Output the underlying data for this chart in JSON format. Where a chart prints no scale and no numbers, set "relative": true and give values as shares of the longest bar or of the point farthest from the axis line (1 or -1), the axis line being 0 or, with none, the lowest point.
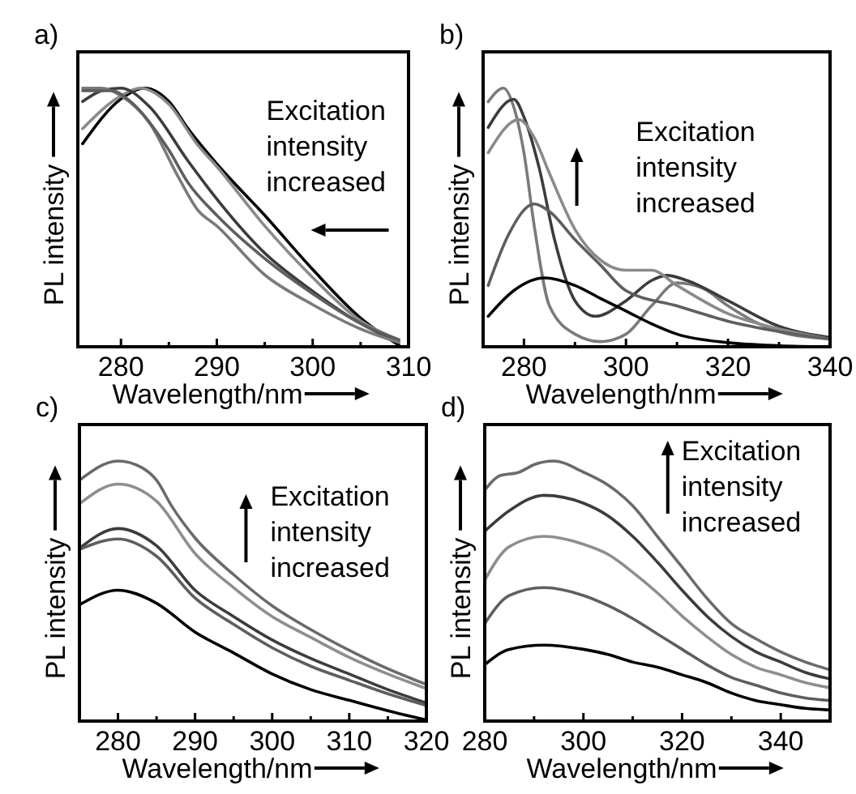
{
  "chart_data": [
    {
      "type": "line",
      "title": "a)",
      "xlabel": "Wavelength/nm",
      "ylabel": "PL intensity",
      "relative": true,
      "tick_labels": "x",
      "xlim": [
        275.5,
        310
      ],
      "xticks": [
        280,
        {
          "value": 285,
          "label": null
        },
        290,
        {
          "value": 295,
          "label": null
        },
        300,
        {
          "value": 305,
          "label": null
        },
        310
      ],
      "annotations": [
        "Excitation intensity increased"
      ],
      "series": [
        {
          "color": "#000000",
          "x": [
            276,
            280,
            282.5,
            285,
            287,
            290,
            295,
            300,
            305,
            309
          ],
          "values": [
            0.785,
            0.958,
            1,
            0.948,
            0.843,
            0.707,
            0.508,
            0.299,
            0.111,
            0.006
          ]
        },
        {
          "color": "#8a8a8a",
          "x": [
            276,
            280,
            282,
            285,
            288,
            290,
            295,
            300,
            305,
            309
          ],
          "values": [
            0.843,
            0.97,
            1,
            0.937,
            0.78,
            0.697,
            0.467,
            0.268,
            0.1,
            0.027
          ]
        },
        {
          "color": "#3c3c3c",
          "x": [
            276,
            278,
            280,
            283,
            287,
            290,
            295,
            300,
            305,
            309
          ],
          "values": [
            0.948,
            0.99,
            1,
            0.927,
            0.718,
            0.571,
            0.362,
            0.215,
            0.09,
            0.017
          ]
        },
        {
          "color": "#7a7a7a",
          "x": [
            276,
            278,
            280,
            283,
            286,
            288,
            290,
            295,
            300,
            305,
            309
          ],
          "values": [
            1,
            1,
            0.97,
            0.864,
            0.655,
            0.529,
            0.467,
            0.278,
            0.163,
            0.069,
            0.017
          ]
        },
        {
          "color": "#5e5e5e",
          "x": [
            276,
            279,
            281,
            285,
            287,
            290,
            295,
            300,
            305,
            309
          ],
          "values": [
            0.99,
            0.99,
            0.948,
            0.76,
            0.634,
            0.508,
            0.341,
            0.205,
            0.09,
            0.027
          ]
        }
      ]
    },
    {
      "type": "line",
      "title": "b)",
      "xlabel": "Wavelength/nm",
      "ylabel": "PL intensity",
      "relative": true,
      "tick_labels": "x",
      "xlim": [
        272,
        340
      ],
      "xticks": [
        280,
        {
          "value": 290,
          "label": null
        },
        300,
        {
          "value": 310,
          "label": null
        },
        320,
        {
          "value": 330,
          "label": null
        },
        340
      ],
      "annotations": [
        "Excitation intensity increased"
      ],
      "series": [
        {
          "color": "#7a7a7a",
          "x": [
            273,
            276,
            278,
            280,
            282,
            285,
            290,
            295,
            300,
            305,
            310,
            315,
            320,
            325,
            330,
            340
          ],
          "values": [
            0.947,
            1,
            0.927,
            0.75,
            0.47,
            0.158,
            0.049,
            0.02,
            0.049,
            0.158,
            0.247,
            0.227,
            0.158,
            0.099,
            0.059,
            0.03
          ]
        },
        {
          "color": "#3c3c3c",
          "x": [
            273,
            278,
            280,
            283,
            286,
            290,
            294,
            300,
            305,
            308,
            312,
            320,
            330,
            340
          ],
          "values": [
            0.848,
            0.957,
            0.888,
            0.69,
            0.414,
            0.178,
            0.118,
            0.178,
            0.256,
            0.276,
            0.256,
            0.178,
            0.079,
            0.036
          ]
        },
        {
          "color": "#8a8a8a",
          "x": [
            273,
            279,
            282,
            285,
            290,
            295,
            300,
            305,
            310,
            320,
            330,
            340
          ],
          "values": [
            0.75,
            0.878,
            0.809,
            0.67,
            0.454,
            0.335,
            0.296,
            0.296,
            0.237,
            0.128,
            0.069,
            0.03
          ]
        },
        {
          "color": "#5e5e5e",
          "x": [
            273,
            277,
            282,
            285,
            290,
            295,
            300,
            310,
            320,
            330,
            340
          ],
          "values": [
            0.237,
            0.434,
            0.552,
            0.523,
            0.414,
            0.316,
            0.217,
            0.158,
            0.099,
            0.059,
            0.03
          ]
        },
        {
          "color": "#000000",
          "x": [
            273,
            278,
            284,
            290,
            295,
            300,
            305,
            310,
            320,
            330,
            340
          ],
          "values": [
            0.118,
            0.217,
            0.266,
            0.237,
            0.187,
            0.138,
            0.089,
            0.049,
            0.016,
            0.004,
            0
          ]
        }
      ]
    },
    {
      "type": "line",
      "title": "c)",
      "xlabel": "Wavelength/nm",
      "ylabel": "PL intensity",
      "relative": true,
      "tick_labels": "x",
      "xlim": [
        275,
        320
      ],
      "xticks": [
        280,
        {
          "value": 285,
          "label": null
        },
        290,
        {
          "value": 295,
          "label": null
        },
        300,
        {
          "value": 305,
          "label": null
        },
        310,
        {
          "value": 315,
          "label": null
        },
        320
      ],
      "annotations": [
        "Excitation intensity increased"
      ],
      "series": [
        {
          "color": "#6a6a6a",
          "x": [
            275,
            280,
            283,
            285,
            287,
            290,
            295,
            300,
            305,
            310,
            315,
            320
          ],
          "values": [
            0.926,
            1,
            0.976,
            0.926,
            0.825,
            0.704,
            0.563,
            0.443,
            0.352,
            0.272,
            0.201,
            0.141
          ]
        },
        {
          "color": "#8e8e8e",
          "x": [
            275,
            280,
            285,
            290,
            295,
            300,
            305,
            310,
            315,
            320
          ],
          "values": [
            0.835,
            0.911,
            0.845,
            0.644,
            0.513,
            0.402,
            0.322,
            0.245,
            0.181,
            0.125
          ]
        },
        {
          "color": "#3c3c3c",
          "x": [
            275,
            280,
            285,
            290,
            295,
            300,
            305,
            310,
            315,
            320
          ],
          "values": [
            0.664,
            0.74,
            0.674,
            0.503,
            0.402,
            0.312,
            0.241,
            0.181,
            0.121,
            0.07
          ]
        },
        {
          "color": "#5e5e5e",
          "x": [
            275,
            280,
            285,
            290,
            295,
            300,
            305,
            310,
            315,
            320
          ],
          "values": [
            0.66,
            0.7,
            0.634,
            0.473,
            0.372,
            0.282,
            0.211,
            0.157,
            0.105,
            0.06
          ]
        },
        {
          "color": "#000000",
          "x": [
            275,
            280,
            285,
            290,
            295,
            300,
            305,
            310,
            315,
            320
          ],
          "values": [
            0.447,
            0.503,
            0.453,
            0.342,
            0.262,
            0.181,
            0.121,
            0.08,
            0.04,
            0.004
          ]
        }
      ]
    },
    {
      "type": "line",
      "title": "d)",
      "xlabel": "Wavelength/nm",
      "ylabel": "PL intensity",
      "relative": true,
      "tick_labels": "x",
      "xlim": [
        280,
        350
      ],
      "xticks": [
        280,
        {
          "value": 290,
          "label": null
        },
        300,
        {
          "value": 310,
          "label": null
        },
        320,
        {
          "value": 330,
          "label": null
        },
        340
      ],
      "annotations": [
        "Excitation intensity increased"
      ],
      "series": [
        {
          "color": "#6a6a6a",
          "x": [
            280,
            283,
            287,
            290,
            294,
            300,
            305,
            310,
            315,
            320,
            325,
            330,
            335,
            340,
            345,
            350
          ],
          "values": [
            0.888,
            0.943,
            0.957,
            0.986,
            1,
            0.957,
            0.907,
            0.828,
            0.71,
            0.592,
            0.473,
            0.375,
            0.316,
            0.266,
            0.227,
            0.197
          ]
        },
        {
          "color": "#3c3c3c",
          "x": [
            280,
            285,
            292,
            300,
            305,
            310,
            315,
            320,
            325,
            330,
            335,
            340,
            345,
            350
          ],
          "values": [
            0.73,
            0.809,
            0.868,
            0.838,
            0.789,
            0.71,
            0.611,
            0.503,
            0.404,
            0.325,
            0.266,
            0.227,
            0.187,
            0.162
          ]
        },
        {
          "color": "#8e8e8e",
          "x": [
            280,
            285,
            292,
            300,
            305,
            310,
            315,
            320,
            325,
            330,
            335,
            340,
            345,
            350
          ],
          "values": [
            0.542,
            0.671,
            0.71,
            0.68,
            0.641,
            0.572,
            0.493,
            0.404,
            0.325,
            0.256,
            0.207,
            0.178,
            0.148,
            0.128
          ]
        },
        {
          "color": "#5e5e5e",
          "x": [
            280,
            285,
            292,
            300,
            305,
            310,
            315,
            320,
            325,
            330,
            335,
            340,
            345,
            350
          ],
          "values": [
            0.375,
            0.483,
            0.513,
            0.483,
            0.444,
            0.394,
            0.335,
            0.276,
            0.217,
            0.168,
            0.138,
            0.108,
            0.089,
            0.079
          ]
        },
        {
          "color": "#000000",
          "x": [
            280,
            285,
            292,
            300,
            305,
            310,
            315,
            320,
            325,
            330,
            335,
            340,
            345,
            350
          ],
          "values": [
            0.217,
            0.276,
            0.292,
            0.276,
            0.256,
            0.227,
            0.207,
            0.178,
            0.148,
            0.108,
            0.079,
            0.063,
            0.049,
            0.043
          ]
        }
      ]
    }
  ]
}
